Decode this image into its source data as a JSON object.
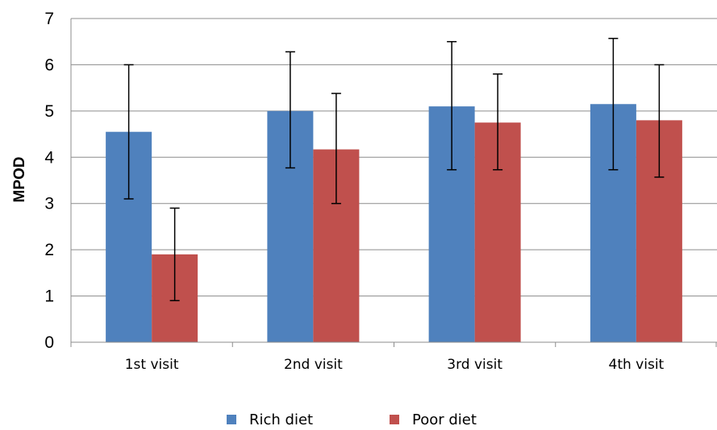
{
  "chart_data": {
    "type": "bar",
    "title": "",
    "xlabel": "",
    "ylabel": "MPOD",
    "ylim": [
      0,
      7
    ],
    "yticks": [
      0,
      1,
      2,
      3,
      4,
      5,
      6,
      7
    ],
    "grid": true,
    "legend_position": "bottom",
    "categories": [
      "1st visit",
      "2nd visit",
      "3rd visit",
      "4th visit"
    ],
    "series": [
      {
        "name": "Rich diet",
        "color": "#4F81BD",
        "values": [
          4.55,
          5.0,
          5.1,
          5.15
        ],
        "error_low": [
          3.1,
          3.77,
          3.73,
          3.73
        ],
        "error_high": [
          6.0,
          6.28,
          6.5,
          6.57
        ]
      },
      {
        "name": "Poor diet",
        "color": "#C0504D",
        "values": [
          1.9,
          4.17,
          4.75,
          4.8
        ],
        "error_low": [
          0.9,
          3.0,
          3.73,
          3.57
        ],
        "error_high": [
          2.9,
          5.38,
          5.8,
          6.0
        ]
      }
    ]
  }
}
